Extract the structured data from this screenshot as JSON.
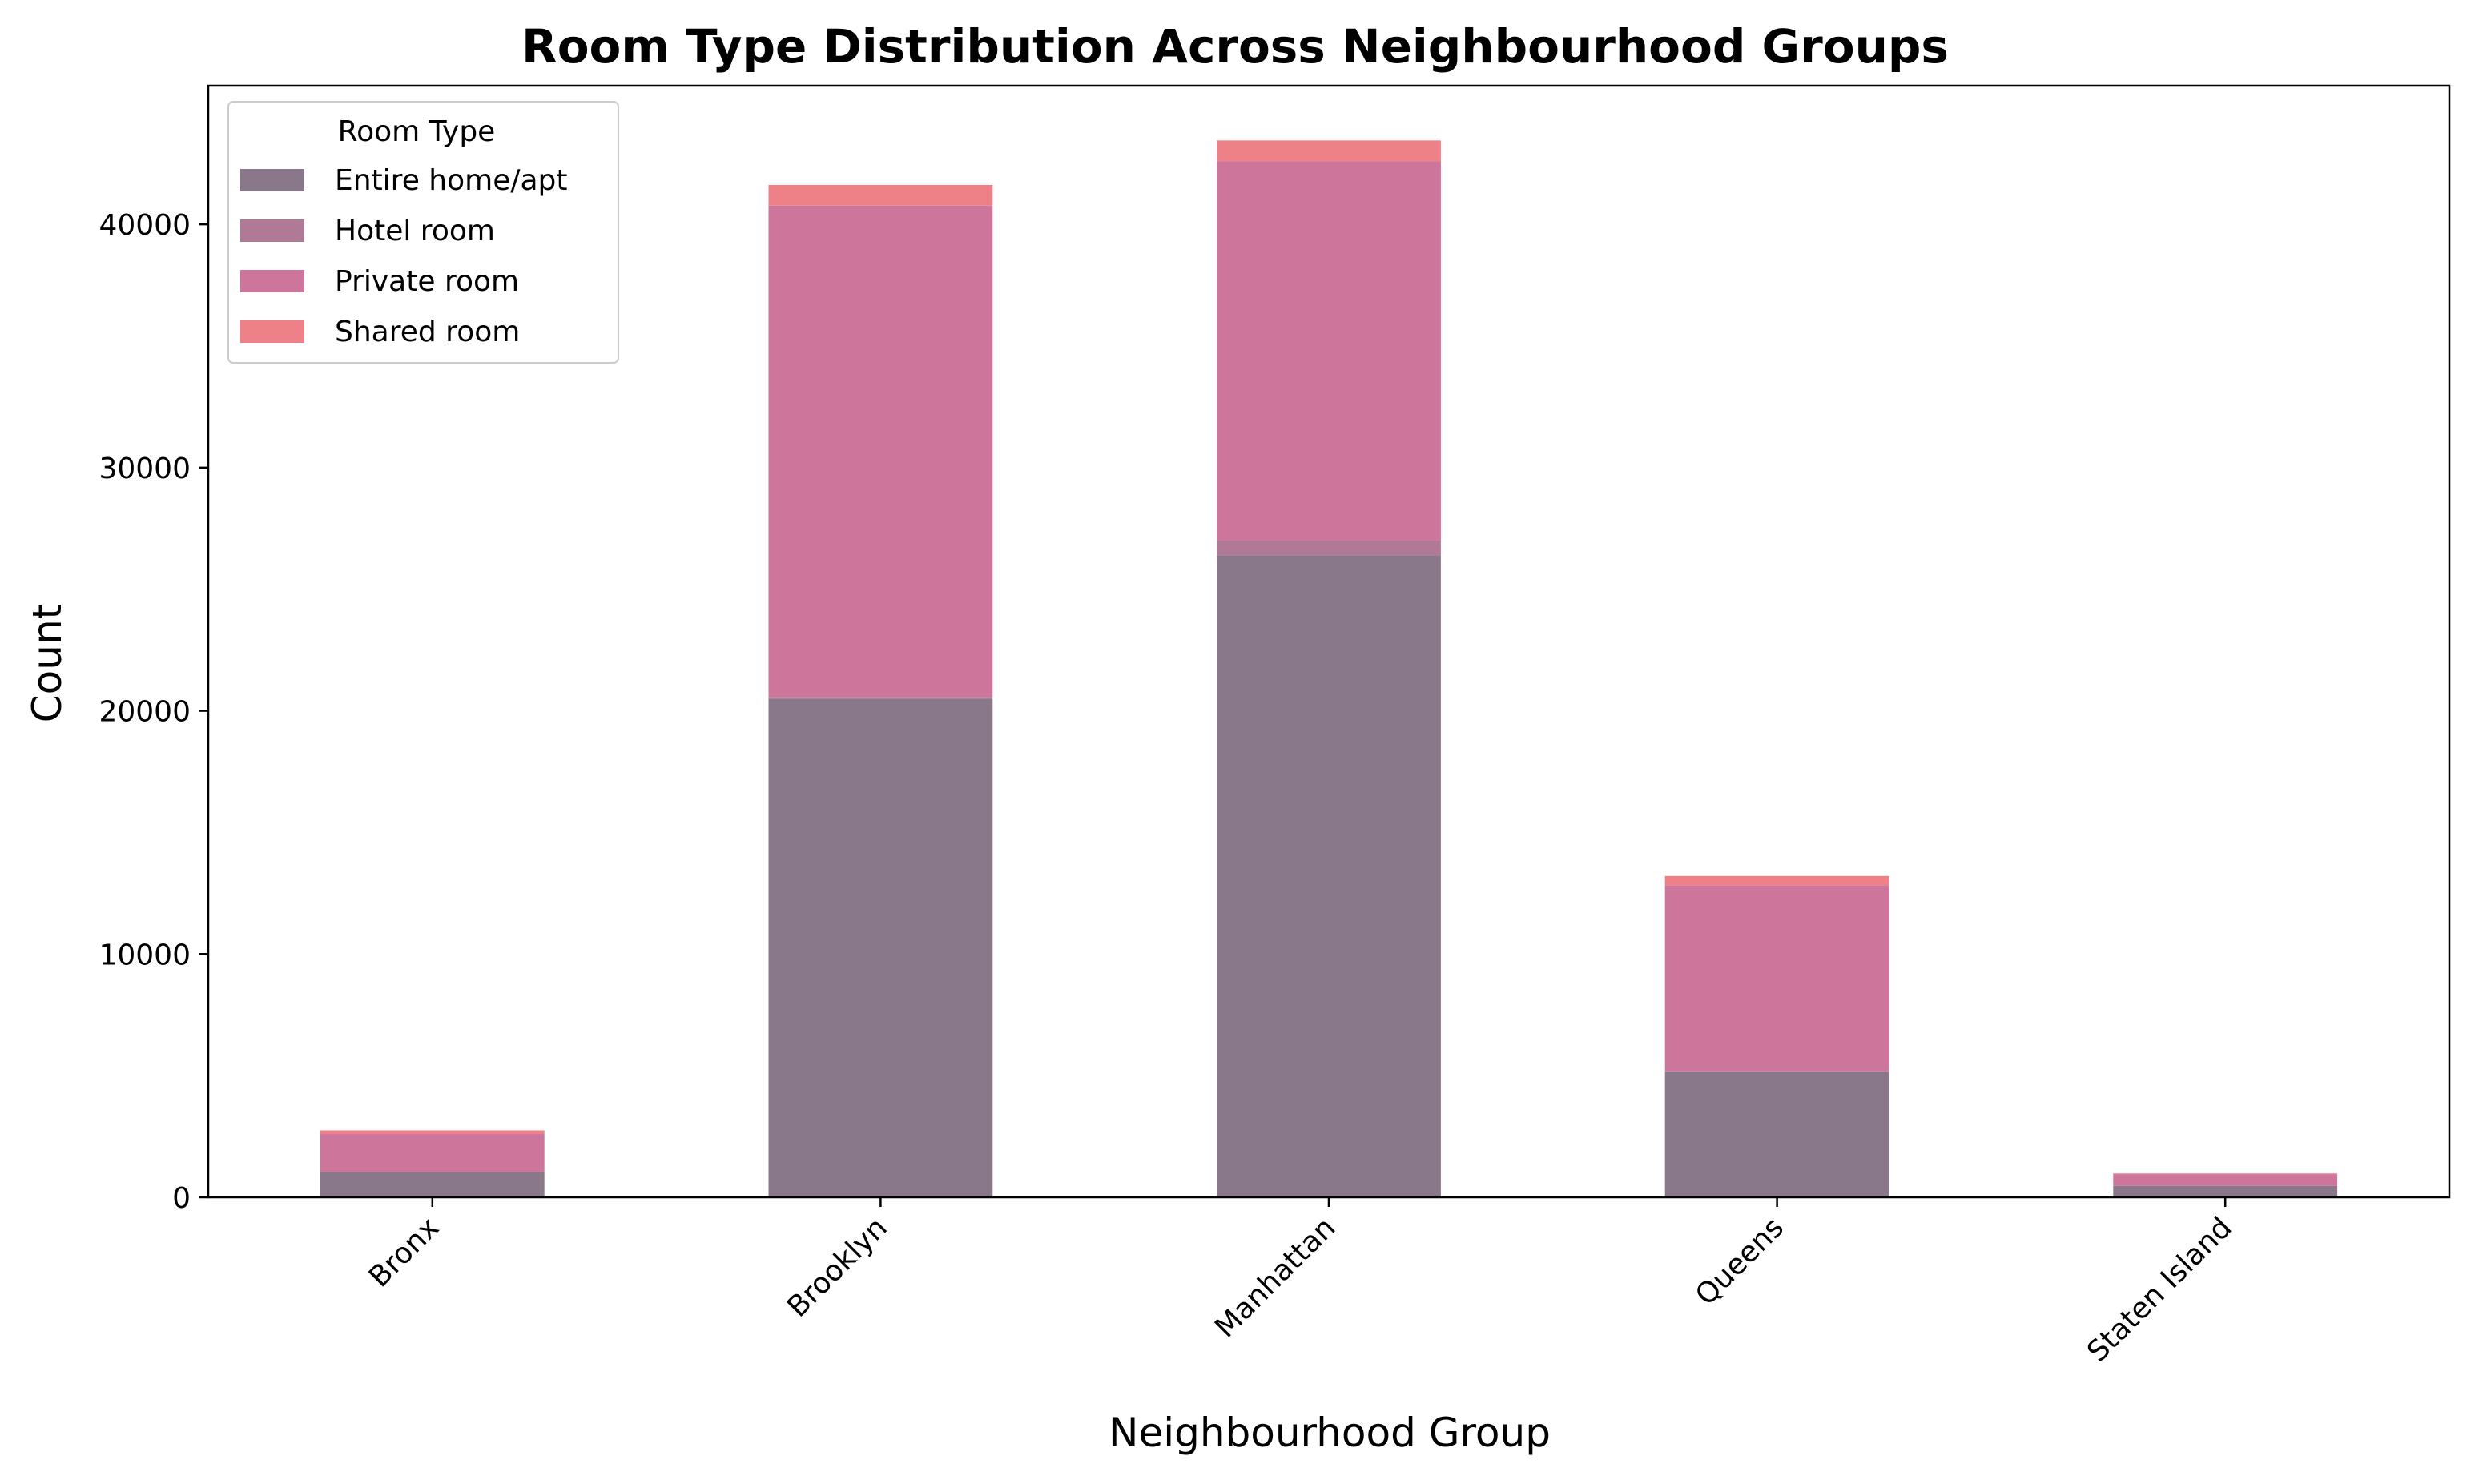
{
  "chart_data": {
    "type": "bar",
    "stacked": true,
    "title": "Room Type Distribution Across Neighbourhood Groups",
    "xlabel": "Neighbourhood Group",
    "ylabel": "Count",
    "categories": [
      "Bronx",
      "Brooklyn",
      "Manhattan",
      "Queens",
      "Staten Island"
    ],
    "ylim": [
      0,
      45700
    ],
    "yticks": [
      0,
      10000,
      20000,
      30000,
      40000
    ],
    "ytick_labels": [
      "0",
      "10000",
      "20000",
      "30000",
      "40000"
    ],
    "grid": false,
    "legend": {
      "title": "Room Type",
      "placement": "top-left"
    },
    "series": [
      {
        "name": "Entire home/apt",
        "color": "#89778a",
        "values": [
          1030,
          20500,
          26400,
          5150,
          470
        ]
      },
      {
        "name": "Hotel room",
        "color": "#b07a97",
        "values": [
          10,
          70,
          600,
          30,
          0
        ]
      },
      {
        "name": "Private room",
        "color": "#cd759a",
        "values": [
          1560,
          20200,
          15600,
          7650,
          470
        ]
      },
      {
        "name": "Shared room",
        "color": "#ee8088",
        "values": [
          150,
          850,
          850,
          380,
          40
        ]
      }
    ]
  }
}
